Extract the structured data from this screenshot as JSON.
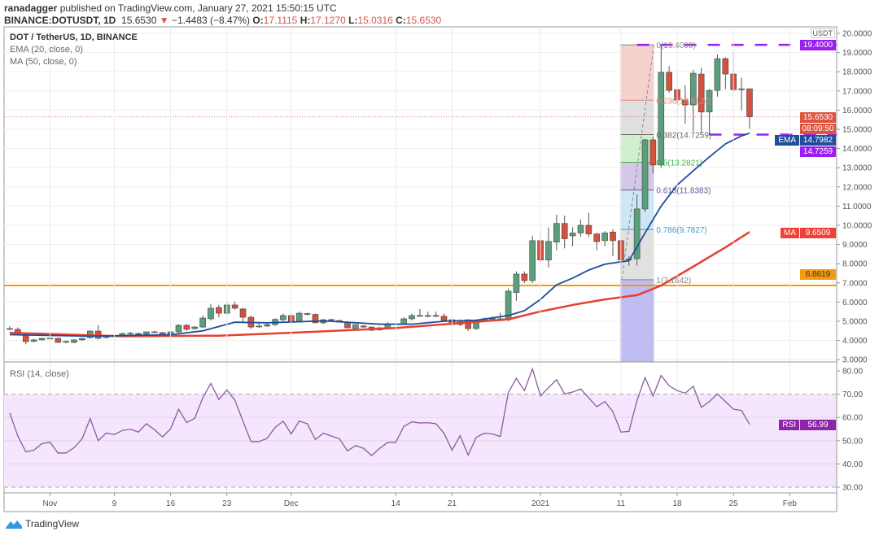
{
  "header": {
    "publisher": "ranadagger",
    "published_text": "published on TradingView.com, January 27, 2021 15:50:15 UTC",
    "symbol": "BINANCE:DOTUSDT, 1D",
    "last": "15.6530",
    "change_arrow": "▼",
    "change": "−1.4483 (−8.47%)",
    "o_label": "O:",
    "o": "17.1115",
    "h_label": "H:",
    "h": "17.1270",
    "l_label": "L:",
    "l": "15.0316",
    "c_label": "C:",
    "c": "15.6530"
  },
  "legend": {
    "title": "DOT / TetherUS, 1D, BINANCE",
    "ema": "EMA (20, close, 0)",
    "ma": "MA (50, close, 0)"
  },
  "rsi_title": "RSI (14, close)",
  "price_axis": {
    "currency": "USDT",
    "resistance": "19.4000",
    "last_price": "15.6530",
    "countdown": "08:09:50",
    "ema_tag": "EMA",
    "ema_value": "14.7982",
    "support": "14.7259",
    "ma_tag": "MA",
    "ma_value": "9.6509",
    "orange_level": "6.8619",
    "rsi_tag": "RSI",
    "rsi_value": "56.99"
  },
  "logo": "TradingView",
  "colors": {
    "up": "#5b9e7c",
    "down": "#d4513f",
    "ema": "#1f4e9c",
    "ma": "#e5412f",
    "orange_line": "#f59a0c",
    "purple_line": "#9b1ef0",
    "rsi": "#8e5aa0",
    "rsi_band": "#f3e6fd"
  },
  "chart_data": {
    "type": "candlestick",
    "title": "DOT / TetherUS, 1D, BINANCE",
    "ylim": [
      3,
      20
    ],
    "y_ticks": [
      3,
      4,
      5,
      6,
      7,
      8,
      9,
      10,
      11,
      12,
      13,
      14,
      15,
      16,
      17,
      18,
      19,
      20
    ],
    "x_labels": [
      {
        "label": "Nov",
        "date": "2020-11-01"
      },
      {
        "label": "9",
        "date": "2020-11-09"
      },
      {
        "label": "16",
        "date": "2020-11-16"
      },
      {
        "label": "23",
        "date": "2020-11-23"
      },
      {
        "label": "Dec",
        "date": "2020-12-01"
      },
      {
        "label": "14",
        "date": "2020-12-14"
      },
      {
        "label": "21",
        "date": "2020-12-21"
      },
      {
        "label": "2021",
        "date": "2021-01-01"
      },
      {
        "label": "11",
        "date": "2021-01-11"
      },
      {
        "label": "18",
        "date": "2021-01-18"
      },
      {
        "label": "25",
        "date": "2021-01-25"
      },
      {
        "label": "Feb",
        "date": "2021-02-01"
      }
    ],
    "candle_fields": [
      "date",
      "open",
      "high",
      "low",
      "close"
    ],
    "candles": [
      [
        "2020-10-27",
        4.6,
        4.75,
        4.55,
        4.62
      ],
      [
        "2020-10-28",
        4.58,
        4.68,
        4.26,
        4.28
      ],
      [
        "2020-10-29",
        4.28,
        4.3,
        3.8,
        3.94
      ],
      [
        "2020-10-30",
        3.96,
        4.08,
        3.9,
        4.03
      ],
      [
        "2020-10-31",
        4.03,
        4.15,
        4.0,
        4.11
      ],
      [
        "2020-11-01",
        4.11,
        4.18,
        4.05,
        4.12
      ],
      [
        "2020-11-02",
        4.11,
        4.15,
        3.88,
        3.9
      ],
      [
        "2020-11-03",
        3.92,
        4.0,
        3.85,
        3.95
      ],
      [
        "2020-11-04",
        3.9,
        4.06,
        3.85,
        4.03
      ],
      [
        "2020-11-05",
        4.03,
        4.14,
        3.98,
        4.11
      ],
      [
        "2020-11-06",
        4.15,
        4.52,
        4.1,
        4.49
      ],
      [
        "2020-11-07",
        4.49,
        4.8,
        4.05,
        4.11
      ],
      [
        "2020-11-08",
        4.15,
        4.26,
        4.1,
        4.24
      ],
      [
        "2020-11-09",
        4.24,
        4.3,
        4.15,
        4.19
      ],
      [
        "2020-11-10",
        4.28,
        4.4,
        4.22,
        4.36
      ],
      [
        "2020-11-11",
        4.36,
        4.45,
        4.3,
        4.37
      ],
      [
        "2020-11-12",
        4.36,
        4.42,
        4.28,
        4.32
      ],
      [
        "2020-11-13",
        4.32,
        4.47,
        4.28,
        4.45
      ],
      [
        "2020-11-14",
        4.45,
        4.5,
        4.38,
        4.41
      ],
      [
        "2020-11-15",
        4.41,
        4.45,
        4.22,
        4.28
      ],
      [
        "2020-11-16",
        4.32,
        4.52,
        4.28,
        4.45
      ],
      [
        "2020-11-17",
        4.45,
        4.85,
        4.4,
        4.79
      ],
      [
        "2020-11-18",
        4.79,
        4.85,
        4.5,
        4.58
      ],
      [
        "2020-11-19",
        4.62,
        4.75,
        4.55,
        4.7
      ],
      [
        "2020-11-20",
        4.7,
        5.3,
        4.65,
        5.17
      ],
      [
        "2020-11-21",
        5.13,
        5.9,
        5.05,
        5.68
      ],
      [
        "2020-11-22",
        5.72,
        5.85,
        5.2,
        5.42
      ],
      [
        "2020-11-23",
        5.42,
        6.0,
        5.35,
        5.85
      ],
      [
        "2020-11-24",
        5.85,
        6.02,
        5.6,
        5.68
      ],
      [
        "2020-11-25",
        5.64,
        5.7,
        4.95,
        5.21
      ],
      [
        "2020-11-26",
        5.21,
        5.3,
        4.6,
        4.7
      ],
      [
        "2020-11-27",
        4.72,
        4.95,
        4.65,
        4.75
      ],
      [
        "2020-11-28",
        4.75,
        4.9,
        4.7,
        4.83
      ],
      [
        "2020-11-29",
        4.83,
        5.15,
        4.75,
        5.1
      ],
      [
        "2020-11-30",
        5.08,
        5.4,
        5.0,
        5.3
      ],
      [
        "2020-12-01",
        5.3,
        5.45,
        4.85,
        4.96
      ],
      [
        "2020-12-02",
        5.0,
        5.5,
        4.95,
        5.42
      ],
      [
        "2020-12-03",
        5.4,
        5.45,
        5.3,
        5.36
      ],
      [
        "2020-12-04",
        5.36,
        5.4,
        4.9,
        4.92
      ],
      [
        "2020-12-05",
        4.92,
        5.12,
        4.85,
        5.08
      ],
      [
        "2020-12-06",
        5.08,
        5.12,
        5.0,
        5.09
      ],
      [
        "2020-12-07",
        5.04,
        5.08,
        4.95,
        4.96
      ],
      [
        "2020-12-08",
        4.96,
        5.0,
        4.64,
        4.66
      ],
      [
        "2020-12-09",
        4.62,
        4.85,
        4.55,
        4.83
      ],
      [
        "2020-12-10",
        4.75,
        4.8,
        4.66,
        4.7
      ],
      [
        "2020-12-11",
        4.7,
        4.72,
        4.5,
        4.53
      ],
      [
        "2020-12-12",
        4.55,
        4.7,
        4.5,
        4.66
      ],
      [
        "2020-12-13",
        4.66,
        4.95,
        4.62,
        4.83
      ],
      [
        "2020-12-14",
        4.83,
        4.9,
        4.8,
        4.87
      ],
      [
        "2020-12-15",
        4.83,
        5.2,
        4.8,
        5.13
      ],
      [
        "2020-12-16",
        5.13,
        5.4,
        5.05,
        5.3
      ],
      [
        "2020-12-17",
        5.3,
        5.64,
        5.25,
        5.28
      ],
      [
        "2020-12-18",
        5.28,
        5.5,
        5.2,
        5.3
      ],
      [
        "2020-12-19",
        5.3,
        5.5,
        5.22,
        5.28
      ],
      [
        "2020-12-20",
        5.26,
        5.4,
        5.0,
        5.04
      ],
      [
        "2020-12-21",
        5.08,
        5.25,
        4.75,
        4.83
      ],
      [
        "2020-12-22",
        4.83,
        5.1,
        4.75,
        5.04
      ],
      [
        "2020-12-23",
        5.08,
        5.1,
        4.5,
        4.62
      ],
      [
        "2020-12-24",
        4.62,
        5.1,
        4.55,
        5.04
      ],
      [
        "2020-12-25",
        5.0,
        5.2,
        4.95,
        5.13
      ],
      [
        "2020-12-26",
        5.13,
        5.25,
        5.05,
        5.15
      ],
      [
        "2020-12-27",
        5.13,
        5.45,
        5.0,
        5.04
      ],
      [
        "2020-12-28",
        5.08,
        6.7,
        5.0,
        6.57
      ],
      [
        "2020-12-29",
        6.5,
        7.6,
        6.06,
        7.46
      ],
      [
        "2020-12-30",
        7.46,
        7.6,
        7.0,
        7.12
      ],
      [
        "2020-12-31",
        7.12,
        9.45,
        7.0,
        9.2
      ],
      [
        "2021-01-01",
        9.2,
        9.7,
        8.0,
        8.19
      ],
      [
        "2021-01-02",
        8.19,
        9.9,
        7.8,
        9.16
      ],
      [
        "2021-01-03",
        9.12,
        10.55,
        8.7,
        10.1
      ],
      [
        "2021-01-04",
        10.1,
        10.5,
        8.8,
        9.3
      ],
      [
        "2021-01-05",
        9.45,
        9.9,
        8.9,
        9.6
      ],
      [
        "2021-01-06",
        9.6,
        10.3,
        9.4,
        10.0
      ],
      [
        "2021-01-07",
        10.0,
        10.65,
        9.4,
        9.55
      ],
      [
        "2021-01-08",
        9.55,
        9.6,
        8.7,
        9.15
      ],
      [
        "2021-01-09",
        9.2,
        9.7,
        8.9,
        9.6
      ],
      [
        "2021-01-10",
        9.65,
        9.8,
        8.4,
        9.2
      ],
      [
        "2021-01-11",
        9.2,
        9.3,
        7.7,
        8.2
      ],
      [
        "2021-01-12",
        8.2,
        8.4,
        7.9,
        8.25
      ],
      [
        "2021-01-13",
        8.26,
        11.6,
        7.9,
        10.85
      ],
      [
        "2021-01-14",
        10.85,
        14.5,
        10.7,
        14.45
      ],
      [
        "2021-01-15",
        14.45,
        14.6,
        12.7,
        13.14
      ],
      [
        "2021-01-16",
        13.14,
        19.4,
        13.0,
        17.97
      ],
      [
        "2021-01-17",
        17.97,
        18.3,
        16.9,
        17.03
      ],
      [
        "2021-01-18",
        17.07,
        18.2,
        15.7,
        16.53
      ],
      [
        "2021-01-19",
        16.53,
        17.3,
        15.3,
        16.27
      ],
      [
        "2021-01-20",
        16.27,
        18.1,
        14.9,
        17.92
      ],
      [
        "2021-01-21",
        17.88,
        18.2,
        14.8,
        15.9
      ],
      [
        "2021-01-22",
        15.9,
        17.1,
        14.7,
        17.03
      ],
      [
        "2021-01-23",
        17.03,
        18.9,
        16.7,
        18.68
      ],
      [
        "2021-01-24",
        18.68,
        18.75,
        17.1,
        17.88
      ],
      [
        "2021-01-25",
        17.88,
        19.0,
        16.9,
        17.07
      ],
      [
        "2021-01-26",
        17.1,
        17.7,
        16.0,
        17.11
      ],
      [
        "2021-01-27",
        17.1115,
        17.127,
        15.0316,
        15.653
      ]
    ],
    "ema20": [
      [
        "2020-10-27",
        4.3
      ],
      [
        "2020-11-06",
        4.22
      ],
      [
        "2020-11-16",
        4.3
      ],
      [
        "2020-11-20",
        4.5
      ],
      [
        "2020-11-24",
        4.95
      ],
      [
        "2020-11-28",
        4.92
      ],
      [
        "2020-12-05",
        5.02
      ],
      [
        "2020-12-12",
        4.85
      ],
      [
        "2020-12-16",
        4.85
      ],
      [
        "2020-12-20",
        5.0
      ],
      [
        "2020-12-24",
        5.05
      ],
      [
        "2020-12-28",
        5.3
      ],
      [
        "2020-12-30",
        5.55
      ],
      [
        "2021-01-01",
        6.14
      ],
      [
        "2021-01-03",
        6.9
      ],
      [
        "2021-01-05",
        7.25
      ],
      [
        "2021-01-07",
        7.67
      ],
      [
        "2021-01-09",
        7.97
      ],
      [
        "2021-01-11",
        8.1
      ],
      [
        "2021-01-12",
        8.15
      ],
      [
        "2021-01-14",
        9.6
      ],
      [
        "2021-01-16",
        11.0
      ],
      [
        "2021-01-18",
        12.1
      ],
      [
        "2021-01-20",
        12.84
      ],
      [
        "2021-01-22",
        13.56
      ],
      [
        "2021-01-24",
        14.24
      ],
      [
        "2021-01-26",
        14.66
      ],
      [
        "2021-01-27",
        14.7982
      ]
    ],
    "ma50": [
      [
        "2020-10-27",
        4.4
      ],
      [
        "2020-11-10",
        4.22
      ],
      [
        "2020-11-22",
        4.25
      ],
      [
        "2020-12-01",
        4.4
      ],
      [
        "2020-12-14",
        4.65
      ],
      [
        "2020-12-28",
        5.1
      ],
      [
        "2021-01-01",
        5.51
      ],
      [
        "2021-01-05",
        5.85
      ],
      [
        "2021-01-09",
        6.14
      ],
      [
        "2021-01-13",
        6.36
      ],
      [
        "2021-01-16",
        6.86
      ],
      [
        "2021-01-20",
        7.85
      ],
      [
        "2021-01-24",
        8.85
      ],
      [
        "2021-01-27",
        9.6509
      ]
    ],
    "fib_retracement": {
      "start_date": "2021-01-11",
      "end_date": "2021-01-15",
      "levels": [
        {
          "ratio": 0,
          "price": 19.4,
          "label": "0(19.4000)",
          "color": "#888888",
          "band": "#f3c9c5"
        },
        {
          "ratio": 0.236,
          "price": 16.5124,
          "label": "0.236(16.5124)",
          "color": "#e08a80",
          "band": "#d9d9d9"
        },
        {
          "ratio": 0.382,
          "price": 14.7259,
          "label": "0.382(14.7259)",
          "color": "#666666",
          "band": "#c8ecc3"
        },
        {
          "ratio": 0.5,
          "price": 13.2821,
          "label": "0.5(13.2821)",
          "color": "#3fae3f",
          "band": "#cdbde3"
        },
        {
          "ratio": 0.618,
          "price": 11.8383,
          "label": "0.618(11.8383)",
          "color": "#6e4f9e",
          "band": "#c6e3f3"
        },
        {
          "ratio": 0.786,
          "price": 9.7827,
          "label": "0.786(9.7827)",
          "color": "#3a9ad0",
          "band": "#dcdcdc"
        },
        {
          "ratio": 1,
          "price": 7.1642,
          "label": "1(7.1642)",
          "color": "#888888",
          "band": "#b4b1ee"
        }
      ]
    },
    "horizontal_lines": [
      {
        "price": 19.4,
        "style": "dashed",
        "color": "#9b1ef0",
        "from_date": "2021-01-13"
      },
      {
        "price": 14.7259,
        "style": "dashed",
        "color": "#9b1ef0",
        "from_date": "2021-01-22"
      },
      {
        "price": 6.8619,
        "style": "solid",
        "color": "#f59a0c"
      },
      {
        "price": 15.653,
        "style": "dotted",
        "color": "#e07a70"
      }
    ],
    "rsi": {
      "period": 14,
      "ylim": [
        25,
        85
      ],
      "y_ticks": [
        30,
        40,
        50,
        60,
        70,
        80
      ],
      "band": [
        30,
        70
      ],
      "values": [
        61.9,
        52,
        45.2,
        45.9,
        48.7,
        49.4,
        44.7,
        44.7,
        47,
        50.8,
        59.5,
        50,
        53.3,
        52.6,
        54.4,
        54.9,
        53.7,
        57.3,
        54.7,
        51.6,
        55.1,
        63.5,
        57.8,
        59.6,
        68.4,
        74.6,
        67.7,
        71.8,
        67.4,
        58.4,
        49.6,
        49.6,
        51,
        55.7,
        58.4,
        52.9,
        58.4,
        57.3,
        50.5,
        53.2,
        52,
        50.8,
        45.6,
        47.9,
        46.7,
        43.6,
        46.7,
        49.3,
        49.3,
        56.1,
        58.1,
        57.6,
        57.7,
        57.3,
        53.2,
        45.9,
        52.2,
        43.8,
        51.4,
        53.2,
        52.9,
        51.8,
        70.7,
        76.8,
        71.5,
        80.9,
        69.2,
        72.8,
        76.2,
        70.1,
        70.9,
        72.2,
        68.4,
        64.6,
        66.8,
        62.5,
        53.7,
        54,
        67.2,
        77.1,
        69.2,
        78,
        73.6,
        71.5,
        70.4,
        73.4,
        64.3,
        66.8,
        70.1,
        66.8,
        63.5,
        63,
        56.99
      ]
    }
  }
}
